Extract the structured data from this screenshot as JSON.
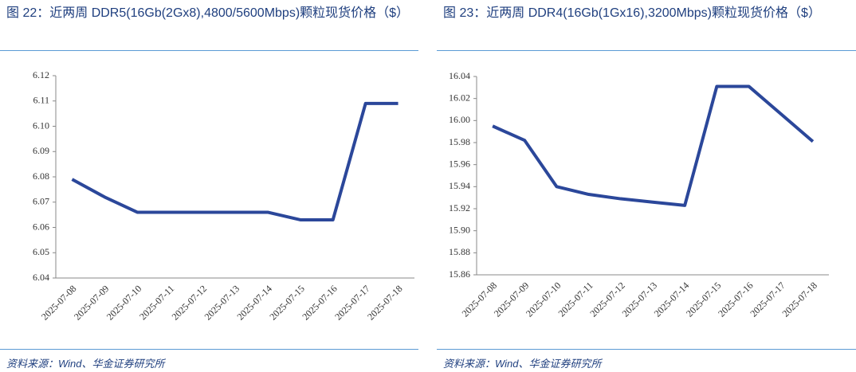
{
  "chart_data": [
    {
      "type": "line",
      "title": "图 22：近两周 DDR5(16Gb(2Gx8),4800/5600Mbps)颗粒现货价格（$）",
      "categories": [
        "2025-07-08",
        "2025-07-09",
        "2025-07-10",
        "2025-07-11",
        "2025-07-12",
        "2025-07-13",
        "2025-07-14",
        "2025-07-15",
        "2025-07-16",
        "2025-07-17",
        "2025-07-18"
      ],
      "values": [
        6.079,
        6.072,
        6.066,
        6.066,
        6.066,
        6.066,
        6.066,
        6.063,
        6.063,
        6.109,
        6.109
      ],
      "color": "#2b479a",
      "ylim": [
        6.04,
        6.12
      ],
      "yticks": [
        6.04,
        6.05,
        6.06,
        6.07,
        6.08,
        6.09,
        {
          "value": 6.1,
          "label": "6.10"
        },
        6.11,
        6.12
      ],
      "source": "资料来源：Wind、华金证券研究所"
    },
    {
      "type": "line",
      "title": "图 23：近两周 DDR4(16Gb(1Gx16),3200Mbps)颗粒现货价格（$）",
      "categories": [
        "2025-07-08",
        "2025-07-09",
        "2025-07-10",
        "2025-07-11",
        "2025-07-12",
        "2025-07-13",
        "2025-07-14",
        "2025-07-15",
        "2025-07-16",
        "2025-07-17",
        "2025-07-18"
      ],
      "values": [
        15.995,
        15.982,
        15.94,
        15.933,
        15.929,
        15.926,
        15.923,
        16.031,
        16.031,
        16.006,
        15.981
      ],
      "color": "#2b479a",
      "ylim": [
        15.86,
        16.04
      ],
      "yticks": [
        15.86,
        15.88,
        {
          "value": 15.9,
          "label": "15.90"
        },
        15.92,
        15.94,
        15.96,
        15.98,
        {
          "value": 16,
          "label": "16.00"
        },
        16.02,
        16.04
      ],
      "source": "资料来源：Wind、华金证券研究所"
    }
  ]
}
